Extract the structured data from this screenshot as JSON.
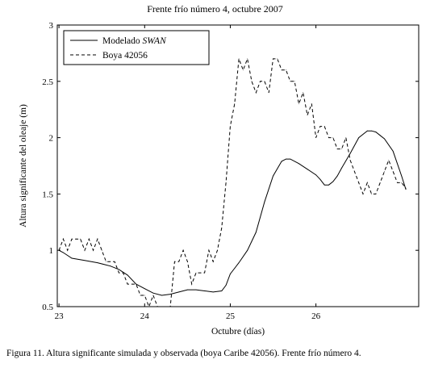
{
  "figure": {
    "title": "Frente frío número 4, octubre 2007",
    "caption": "Figura 11. Altura significante simulada y observada (boya Caribe 42056). Frente frío número 4."
  },
  "chart_data": {
    "type": "line",
    "title": "Frente frío número 4, octubre 2007",
    "xlabel": "Octubre (días)",
    "ylabel": "Altura significante del oleaje (m)",
    "xlim": [
      22.98,
      27.2
    ],
    "ylim": [
      0.5,
      3.0
    ],
    "xticks": [
      23,
      24,
      25,
      26
    ],
    "yticks": [
      0.5,
      1,
      1.5,
      2,
      2.5,
      3
    ],
    "xtick_labels": [
      "23",
      "24",
      "25",
      "26"
    ],
    "ytick_labels": [
      "0.5",
      "1",
      "1.5",
      "2",
      "2.5",
      "3"
    ],
    "legend": {
      "position": "top-left"
    },
    "series": [
      {
        "name": "Modelado SWAN",
        "name_plain": "Modelado ",
        "name_italic": "SWAN",
        "style": "solid",
        "color": "#000000",
        "x": [
          23.0,
          23.05,
          23.15,
          23.3,
          23.45,
          23.6,
          23.7,
          23.8,
          23.9,
          24.0,
          24.1,
          24.2,
          24.3,
          24.4,
          24.5,
          24.6,
          24.7,
          24.8,
          24.9,
          24.95,
          25.0,
          25.05,
          25.1,
          25.2,
          25.3,
          25.4,
          25.5,
          25.6,
          25.65,
          25.7,
          25.8,
          25.9,
          26.0,
          26.05,
          26.1,
          26.15,
          26.2,
          26.25,
          26.3,
          26.4,
          26.5,
          26.6,
          26.65,
          26.7,
          26.75,
          26.8,
          26.9,
          27.0,
          27.05
        ],
        "y": [
          1.0,
          0.98,
          0.93,
          0.91,
          0.89,
          0.86,
          0.83,
          0.78,
          0.7,
          0.66,
          0.62,
          0.6,
          0.61,
          0.63,
          0.65,
          0.65,
          0.64,
          0.63,
          0.64,
          0.69,
          0.79,
          0.84,
          0.89,
          1.0,
          1.16,
          1.43,
          1.66,
          1.79,
          1.81,
          1.81,
          1.77,
          1.72,
          1.67,
          1.63,
          1.58,
          1.58,
          1.61,
          1.66,
          1.73,
          1.86,
          2.0,
          2.06,
          2.06,
          2.05,
          2.02,
          1.99,
          1.88,
          1.66,
          1.54
        ]
      },
      {
        "name": "Boya 42056",
        "style": "dashed",
        "color": "#000000",
        "x": [
          23.0,
          23.05,
          23.1,
          23.15,
          23.2,
          23.25,
          23.3,
          23.35,
          23.4,
          23.45,
          23.5,
          23.55,
          23.6,
          23.65,
          23.7,
          23.75,
          23.8,
          23.85,
          23.9,
          23.95,
          24.0,
          24.05,
          24.1,
          24.15,
          24.2,
          24.25,
          24.3,
          24.35,
          24.4,
          24.45,
          24.5,
          24.55,
          24.6,
          24.65,
          24.7,
          24.75,
          24.8,
          24.85,
          24.9,
          24.95,
          25.0,
          25.05,
          25.1,
          25.15,
          25.2,
          25.25,
          25.3,
          25.35,
          25.4,
          25.45,
          25.5,
          25.55,
          25.6,
          25.65,
          25.7,
          25.75,
          25.8,
          25.85,
          25.9,
          25.95,
          26.0,
          26.05,
          26.1,
          26.15,
          26.2,
          26.25,
          26.3,
          26.35,
          26.4,
          26.45,
          26.5,
          26.55,
          26.6,
          26.65,
          26.7,
          26.75,
          26.8,
          26.85,
          26.9,
          26.95,
          27.0,
          27.05
        ],
        "y": [
          1.0,
          1.1,
          1.0,
          1.1,
          1.1,
          1.1,
          1.0,
          1.1,
          1.0,
          1.1,
          1.0,
          0.9,
          0.9,
          0.9,
          0.8,
          0.8,
          0.7,
          0.7,
          0.7,
          0.6,
          0.6,
          0.5,
          0.6,
          0.5,
          0.5,
          0.5,
          0.5,
          0.9,
          0.9,
          1.0,
          0.9,
          0.7,
          0.8,
          0.8,
          0.8,
          1.0,
          0.9,
          1.0,
          1.2,
          1.6,
          2.1,
          2.3,
          2.7,
          2.6,
          2.7,
          2.5,
          2.4,
          2.5,
          2.5,
          2.4,
          2.7,
          2.7,
          2.6,
          2.6,
          2.5,
          2.5,
          2.3,
          2.4,
          2.2,
          2.3,
          2.0,
          2.1,
          2.1,
          2.0,
          2.0,
          1.9,
          1.9,
          2.0,
          1.8,
          1.7,
          1.6,
          1.5,
          1.6,
          1.5,
          1.5,
          1.6,
          1.7,
          1.8,
          1.7,
          1.6,
          1.6,
          1.55
        ]
      }
    ]
  }
}
